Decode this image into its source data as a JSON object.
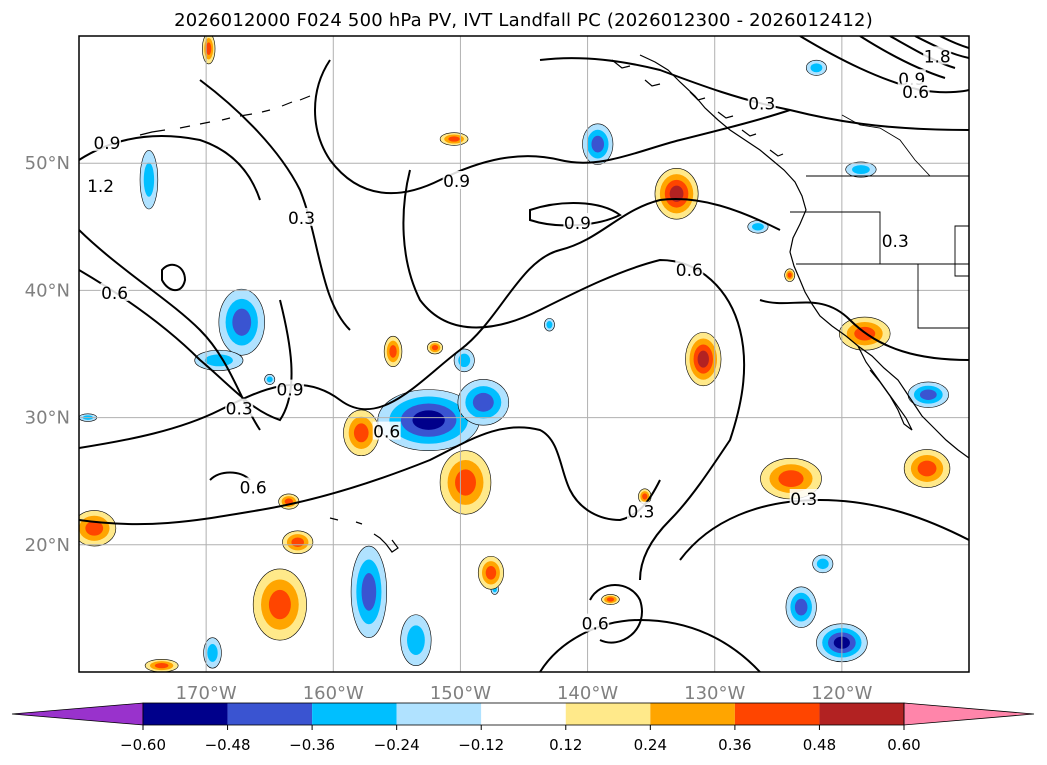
{
  "title": "2026012000 F024 500 hPa PV, IVT Landfall PC (2026012300 - 2026012412)",
  "map": {
    "lon_range": [
      -180,
      -110
    ],
    "lat_range": [
      10,
      60
    ],
    "lon_ticks": [
      {
        "lon": -170,
        "label": "170°W"
      },
      {
        "lon": -160,
        "label": "160°W"
      },
      {
        "lon": -150,
        "label": "150°W"
      },
      {
        "lon": -140,
        "label": "140°W"
      },
      {
        "lon": -130,
        "label": "130°W"
      },
      {
        "lon": -120,
        "label": "120°W"
      }
    ],
    "lat_ticks": [
      {
        "lat": 20,
        "label": "20°N"
      },
      {
        "lat": 30,
        "label": "30°N"
      },
      {
        "lat": 40,
        "label": "40°N"
      },
      {
        "lat": 50,
        "label": "50°N"
      }
    ],
    "grid": true,
    "tick_label_color": "#808080"
  },
  "chart_data": {
    "type": "heatmap",
    "title": "2026012000 F024 500 hPa PV, IVT Landfall PC (2026012300 - 2026012412)",
    "xlabel": "",
    "ylabel": "",
    "xlim": [
      -180,
      -110
    ],
    "ylim": [
      10,
      60
    ],
    "contour_labels": [
      "0.9",
      "1.2",
      "0.3",
      "0.6",
      "0.9",
      "0.3",
      "0.6",
      "0.9",
      "0.6",
      "0.3",
      "0.6",
      "0.6",
      "0.3",
      "0.3",
      "0.6",
      "0.3",
      "1.8",
      "0.9",
      "0.6"
    ],
    "contour_label_positions": [
      {
        "label": "0.9",
        "lon": -177.8,
        "lat": 51.6
      },
      {
        "label": "1.2",
        "lon": -178.3,
        "lat": 48.2
      },
      {
        "label": "0.3",
        "lon": -162.5,
        "lat": 45.7
      },
      {
        "label": "0.6",
        "lon": -177.2,
        "lat": 39.8
      },
      {
        "label": "0.9",
        "lon": -163.4,
        "lat": 32.2
      },
      {
        "label": "0.3",
        "lon": -167.4,
        "lat": 30.7
      },
      {
        "label": "0.6",
        "lon": -166.3,
        "lat": 24.5
      },
      {
        "label": "0.9",
        "lon": -150.3,
        "lat": 48.6
      },
      {
        "label": "0.6",
        "lon": -155.8,
        "lat": 28.9
      },
      {
        "label": "0.9",
        "lon": -140.8,
        "lat": 45.3
      },
      {
        "label": "0.6",
        "lon": -132.0,
        "lat": 41.6
      },
      {
        "label": "0.3",
        "lon": -135.8,
        "lat": 22.6
      },
      {
        "label": "0.6",
        "lon": -139.4,
        "lat": 13.8
      },
      {
        "label": "0.3",
        "lon": -123.0,
        "lat": 23.6
      },
      {
        "label": "0.3",
        "lon": -126.3,
        "lat": 54.7
      },
      {
        "label": "0.3",
        "lon": -115.8,
        "lat": 43.9
      },
      {
        "label": "1.8",
        "lon": -112.5,
        "lat": 58.4
      },
      {
        "label": "0.9",
        "lon": -114.5,
        "lat": 56.6
      },
      {
        "label": "0.6",
        "lon": -114.2,
        "lat": 55.6
      }
    ],
    "colorbar": {
      "extend": "both",
      "levels": [
        -0.6,
        -0.48,
        -0.36,
        -0.24,
        -0.12,
        0.12,
        0.24,
        0.36,
        0.48,
        0.6
      ],
      "tick_labels": [
        "−0.60",
        "−0.48",
        "−0.36",
        "−0.24",
        "−0.12",
        "0.12",
        "0.24",
        "0.36",
        "0.48",
        "0.60"
      ],
      "colors": [
        "#9932cc",
        "#00008b",
        "#3a54d1",
        "#00bfff",
        "#b0e2ff",
        "#ffffff",
        "#ffe98a",
        "#ffa500",
        "#ff4500",
        "#b22222",
        "#ff85aa"
      ]
    },
    "shaded_blobs": [
      {
        "lon": -167.2,
        "lat": 37.5,
        "rx": 1.8,
        "ry": 2.6,
        "v": -0.42
      },
      {
        "lon": -174.5,
        "lat": 48.7,
        "rx": 0.7,
        "ry": 2.3,
        "v": -0.3
      },
      {
        "lon": -169.0,
        "lat": 34.5,
        "rx": 1.9,
        "ry": 0.8,
        "v": -0.3
      },
      {
        "lon": -152.5,
        "lat": 29.8,
        "rx": 4.0,
        "ry": 2.4,
        "v": -0.55
      },
      {
        "lon": -148.2,
        "lat": 31.2,
        "rx": 2.0,
        "ry": 1.8,
        "v": -0.42
      },
      {
        "lon": -149.7,
        "lat": 34.5,
        "rx": 0.8,
        "ry": 0.9,
        "v": -0.3
      },
      {
        "lon": -139.2,
        "lat": 51.5,
        "rx": 1.2,
        "ry": 1.6,
        "v": -0.36
      },
      {
        "lon": -165.0,
        "lat": 33.0,
        "rx": 0.4,
        "ry": 0.4,
        "v": -0.3
      },
      {
        "lon": -143.0,
        "lat": 37.3,
        "rx": 0.4,
        "ry": 0.5,
        "v": -0.25
      },
      {
        "lon": -157.2,
        "lat": 16.3,
        "rx": 1.4,
        "ry": 3.6,
        "v": -0.45
      },
      {
        "lon": -153.5,
        "lat": 12.5,
        "rx": 1.2,
        "ry": 2.0,
        "v": -0.35
      },
      {
        "lon": -169.5,
        "lat": 11.5,
        "rx": 0.7,
        "ry": 1.2,
        "v": -0.3
      },
      {
        "lon": -123.2,
        "lat": 15.1,
        "rx": 1.2,
        "ry": 1.6,
        "v": -0.45
      },
      {
        "lon": -121.5,
        "lat": 18.5,
        "rx": 0.8,
        "ry": 0.7,
        "v": -0.3
      },
      {
        "lon": -120.0,
        "lat": 12.3,
        "rx": 2.0,
        "ry": 1.5,
        "v": -0.5
      },
      {
        "lon": -113.2,
        "lat": 31.8,
        "rx": 1.6,
        "ry": 1.0,
        "v": -0.45
      },
      {
        "lon": -118.5,
        "lat": 49.5,
        "rx": 1.2,
        "ry": 0.6,
        "v": -0.25
      },
      {
        "lon": -122.0,
        "lat": 57.5,
        "rx": 0.8,
        "ry": 0.6,
        "v": -0.3
      },
      {
        "lon": -126.6,
        "lat": 45.0,
        "rx": 0.8,
        "ry": 0.5,
        "v": -0.3
      },
      {
        "lon": -179.3,
        "lat": 30.0,
        "rx": 0.7,
        "ry": 0.3,
        "v": -0.25
      },
      {
        "lon": -147.3,
        "lat": 16.5,
        "rx": 0.3,
        "ry": 0.4,
        "v": -0.25
      },
      {
        "lon": -133.0,
        "lat": 47.6,
        "rx": 1.7,
        "ry": 2.0,
        "v": 0.48
      },
      {
        "lon": -130.9,
        "lat": 34.6,
        "rx": 1.4,
        "ry": 2.1,
        "v": 0.5
      },
      {
        "lon": -149.6,
        "lat": 24.9,
        "rx": 2.0,
        "ry": 2.5,
        "v": 0.4
      },
      {
        "lon": -157.8,
        "lat": 28.8,
        "rx": 1.4,
        "ry": 1.8,
        "v": 0.38
      },
      {
        "lon": -164.2,
        "lat": 15.3,
        "rx": 2.1,
        "ry": 2.8,
        "v": 0.45
      },
      {
        "lon": -162.8,
        "lat": 20.2,
        "rx": 1.2,
        "ry": 0.9,
        "v": 0.38
      },
      {
        "lon": -178.8,
        "lat": 21.3,
        "rx": 1.7,
        "ry": 1.4,
        "v": 0.45
      },
      {
        "lon": -124.0,
        "lat": 25.2,
        "rx": 2.4,
        "ry": 1.6,
        "v": 0.45
      },
      {
        "lon": -113.3,
        "lat": 26.0,
        "rx": 1.8,
        "ry": 1.5,
        "v": 0.45
      },
      {
        "lon": -118.2,
        "lat": 36.6,
        "rx": 2.0,
        "ry": 1.3,
        "v": 0.38
      },
      {
        "lon": -147.6,
        "lat": 17.8,
        "rx": 1.0,
        "ry": 1.3,
        "v": 0.42
      },
      {
        "lon": -150.5,
        "lat": 51.9,
        "rx": 1.1,
        "ry": 0.5,
        "v": 0.38
      },
      {
        "lon": -169.8,
        "lat": 59.0,
        "rx": 0.5,
        "ry": 1.2,
        "v": 0.38
      },
      {
        "lon": -155.3,
        "lat": 35.2,
        "rx": 0.7,
        "ry": 1.2,
        "v": 0.36
      },
      {
        "lon": -152.0,
        "lat": 35.5,
        "rx": 0.6,
        "ry": 0.5,
        "v": 0.36
      },
      {
        "lon": -163.5,
        "lat": 23.4,
        "rx": 0.8,
        "ry": 0.6,
        "v": 0.36
      },
      {
        "lon": -135.5,
        "lat": 23.8,
        "rx": 0.5,
        "ry": 0.6,
        "v": 0.36
      },
      {
        "lon": -138.2,
        "lat": 15.7,
        "rx": 0.7,
        "ry": 0.4,
        "v": 0.36
      },
      {
        "lon": -173.5,
        "lat": 10.5,
        "rx": 1.3,
        "ry": 0.5,
        "v": 0.36
      },
      {
        "lon": -124.1,
        "lat": 41.2,
        "rx": 0.4,
        "ry": 0.5,
        "v": 0.36
      }
    ]
  },
  "colorbar_ticks": [
    "−0.60",
    "−0.48",
    "−0.36",
    "−0.24",
    "−0.12",
    "0.12",
    "0.24",
    "0.36",
    "0.48",
    "0.60"
  ]
}
